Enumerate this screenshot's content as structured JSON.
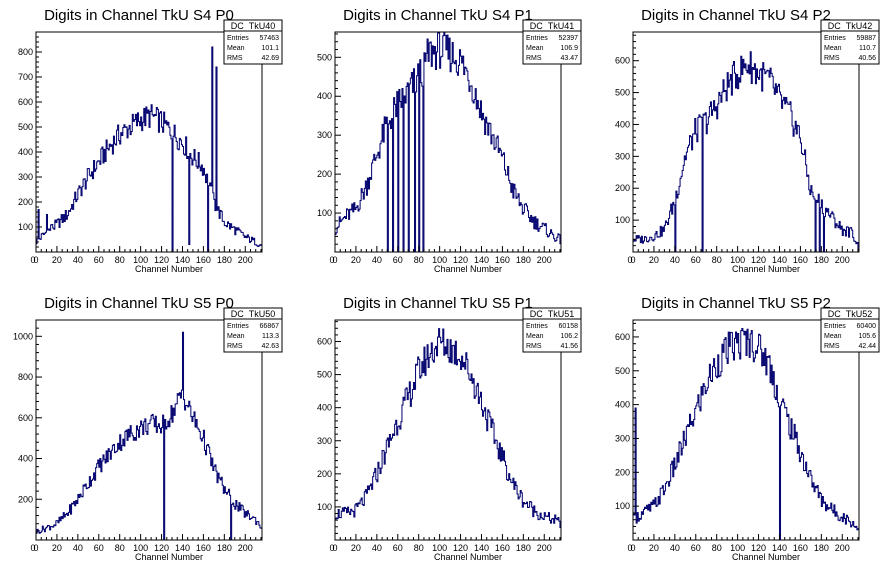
{
  "chart_data": [
    {
      "type": "histogram",
      "title": "Digits in Channel TkU S4 P0",
      "xlabel": "Channel Number",
      "xlim": [
        0,
        216
      ],
      "ylim": [
        0,
        880
      ],
      "xticks": [
        0,
        20,
        40,
        60,
        80,
        100,
        120,
        140,
        160,
        180,
        200
      ],
      "yticks": [
        100,
        200,
        300,
        400,
        500,
        600,
        700,
        800
      ],
      "stats": {
        "name": "DC_TkU40",
        "entries_label": "Entries",
        "entries": "57463",
        "mean_label": "Mean",
        "mean": "101.1",
        "rms_label": "RMS",
        "rms": "42.69"
      },
      "profile": [
        [
          0,
          40
        ],
        [
          10,
          80
        ],
        [
          20,
          110
        ],
        [
          30,
          150
        ],
        [
          40,
          230
        ],
        [
          50,
          300
        ],
        [
          60,
          360
        ],
        [
          70,
          420
        ],
        [
          80,
          470
        ],
        [
          90,
          500
        ],
        [
          100,
          530
        ],
        [
          110,
          545
        ],
        [
          120,
          520
        ],
        [
          130,
          480
        ],
        [
          140,
          440
        ],
        [
          150,
          380
        ],
        [
          160,
          340
        ],
        [
          170,
          200
        ],
        [
          180,
          120
        ],
        [
          190,
          90
        ],
        [
          200,
          60
        ],
        [
          210,
          40
        ],
        [
          216,
          25
        ]
      ],
      "spikes": [
        [
          2,
          170
        ],
        [
          10,
          150
        ],
        [
          15,
          110
        ],
        [
          130,
          0
        ],
        [
          146,
          30
        ],
        [
          164,
          0
        ],
        [
          168,
          820
        ],
        [
          172,
          740
        ]
      ]
    },
    {
      "type": "histogram",
      "title": "Digits in Channel TkU S4 P1",
      "xlabel": "Channel Number",
      "xlim": [
        0,
        216
      ],
      "ylim": [
        0,
        565
      ],
      "xticks": [
        0,
        20,
        40,
        60,
        80,
        100,
        120,
        140,
        160,
        180,
        200
      ],
      "yticks": [
        100,
        200,
        300,
        400,
        500
      ],
      "stats": {
        "name": "DC_TkU41",
        "entries_label": "Entries",
        "entries": "52397",
        "mean_label": "Mean",
        "mean": "106.9",
        "rms_label": "RMS",
        "rms": "43.47"
      },
      "profile": [
        [
          0,
          60
        ],
        [
          10,
          90
        ],
        [
          20,
          110
        ],
        [
          30,
          170
        ],
        [
          40,
          250
        ],
        [
          50,
          330
        ],
        [
          60,
          380
        ],
        [
          70,
          410
        ],
        [
          80,
          450
        ],
        [
          90,
          510
        ],
        [
          100,
          520
        ],
        [
          110,
          510
        ],
        [
          120,
          490
        ],
        [
          130,
          440
        ],
        [
          140,
          360
        ],
        [
          150,
          300
        ],
        [
          160,
          240
        ],
        [
          170,
          160
        ],
        [
          180,
          110
        ],
        [
          190,
          80
        ],
        [
          200,
          60
        ],
        [
          210,
          40
        ],
        [
          216,
          30
        ]
      ],
      "spikes": [
        [
          50,
          0
        ],
        [
          55,
          0
        ],
        [
          60,
          0
        ],
        [
          65,
          0
        ],
        [
          70,
          0
        ],
        [
          76,
          0
        ],
        [
          80,
          0
        ],
        [
          84,
          0
        ]
      ]
    },
    {
      "type": "histogram",
      "title": "Digits in Channel TkU S4 P2",
      "xlabel": "Channel Number",
      "xlim": [
        0,
        216
      ],
      "ylim": [
        0,
        690
      ],
      "xticks": [
        0,
        20,
        40,
        60,
        80,
        100,
        120,
        140,
        160,
        180,
        200
      ],
      "yticks": [
        100,
        200,
        300,
        400,
        500,
        600
      ],
      "stats": {
        "name": "DC_TkU42",
        "entries_label": "Entries",
        "entries": "59887",
        "mean_label": "Mean",
        "mean": "110.7",
        "rms_label": "RMS",
        "rms": "40.56"
      },
      "profile": [
        [
          0,
          40
        ],
        [
          10,
          40
        ],
        [
          20,
          50
        ],
        [
          30,
          70
        ],
        [
          40,
          160
        ],
        [
          50,
          300
        ],
        [
          60,
          380
        ],
        [
          70,
          410
        ],
        [
          80,
          460
        ],
        [
          90,
          520
        ],
        [
          100,
          560
        ],
        [
          110,
          590
        ],
        [
          120,
          560
        ],
        [
          130,
          540
        ],
        [
          140,
          480
        ],
        [
          150,
          430
        ],
        [
          160,
          360
        ],
        [
          170,
          190
        ],
        [
          180,
          150
        ],
        [
          190,
          110
        ],
        [
          200,
          70
        ],
        [
          210,
          60
        ],
        [
          216,
          10
        ]
      ],
      "spikes": [
        [
          40,
          0
        ],
        [
          66,
          0
        ],
        [
          174,
          0
        ],
        [
          178,
          0
        ],
        [
          182,
          0
        ]
      ]
    },
    {
      "type": "histogram",
      "title": "Digits in Channel TkU S5 P0",
      "xlabel": "Channel Number",
      "xlim": [
        0,
        216
      ],
      "ylim": [
        0,
        1080
      ],
      "xticks": [
        0,
        20,
        40,
        60,
        80,
        100,
        120,
        140,
        160,
        180,
        200
      ],
      "yticks": [
        200,
        400,
        600,
        800,
        1000
      ],
      "stats": {
        "name": "DC_TkU50",
        "entries_label": "Entries",
        "entries": "66867",
        "mean_label": "Mean",
        "mean": "113.3",
        "rms_label": "RMS",
        "rms": "42.63"
      },
      "profile": [
        [
          0,
          40
        ],
        [
          10,
          60
        ],
        [
          20,
          80
        ],
        [
          30,
          130
        ],
        [
          40,
          200
        ],
        [
          50,
          280
        ],
        [
          60,
          360
        ],
        [
          70,
          420
        ],
        [
          80,
          480
        ],
        [
          90,
          520
        ],
        [
          100,
          550
        ],
        [
          110,
          570
        ],
        [
          120,
          560
        ],
        [
          130,
          620
        ],
        [
          140,
          720
        ],
        [
          150,
          600
        ],
        [
          160,
          500
        ],
        [
          170,
          350
        ],
        [
          180,
          250
        ],
        [
          190,
          180
        ],
        [
          200,
          130
        ],
        [
          210,
          100
        ],
        [
          216,
          60
        ]
      ],
      "spikes": [
        [
          122,
          0
        ],
        [
          140,
          1020
        ],
        [
          186,
          0
        ]
      ]
    },
    {
      "type": "histogram",
      "title": "Digits in Channel TkU S5 P1",
      "xlabel": "Channel Number",
      "xlim": [
        0,
        216
      ],
      "ylim": [
        0,
        665
      ],
      "xticks": [
        0,
        20,
        40,
        60,
        80,
        100,
        120,
        140,
        160,
        180,
        200
      ],
      "yticks": [
        100,
        200,
        300,
        400,
        500,
        600
      ],
      "stats": {
        "name": "DC_TkU51",
        "entries_label": "Entries",
        "entries": "60158",
        "mean_label": "Mean",
        "mean": "106.2",
        "rms_label": "RMS",
        "rms": "41.56"
      },
      "profile": [
        [
          0,
          80
        ],
        [
          10,
          80
        ],
        [
          20,
          90
        ],
        [
          30,
          130
        ],
        [
          40,
          200
        ],
        [
          50,
          280
        ],
        [
          60,
          360
        ],
        [
          70,
          430
        ],
        [
          80,
          510
        ],
        [
          90,
          560
        ],
        [
          100,
          600
        ],
        [
          110,
          580
        ],
        [
          120,
          560
        ],
        [
          130,
          500
        ],
        [
          140,
          420
        ],
        [
          150,
          330
        ],
        [
          160,
          250
        ],
        [
          170,
          170
        ],
        [
          180,
          120
        ],
        [
          190,
          90
        ],
        [
          200,
          70
        ],
        [
          210,
          60
        ],
        [
          216,
          50
        ]
      ],
      "spikes": []
    },
    {
      "type": "histogram",
      "title": "Digits in Channel TkU S5 P2",
      "xlabel": "Channel Number",
      "xlim": [
        0,
        216
      ],
      "ylim": [
        0,
        650
      ],
      "xticks": [
        0,
        20,
        40,
        60,
        80,
        100,
        120,
        140,
        160,
        180,
        200
      ],
      "yticks": [
        100,
        200,
        300,
        400,
        500,
        600
      ],
      "stats": {
        "name": "DC_TkU52",
        "entries_label": "Entries",
        "entries": "60400",
        "mean_label": "Mean",
        "mean": "105.6",
        "rms_label": "RMS",
        "rms": "42.44"
      },
      "profile": [
        [
          0,
          60
        ],
        [
          10,
          80
        ],
        [
          20,
          100
        ],
        [
          30,
          150
        ],
        [
          40,
          220
        ],
        [
          50,
          300
        ],
        [
          60,
          380
        ],
        [
          70,
          460
        ],
        [
          80,
          520
        ],
        [
          90,
          560
        ],
        [
          100,
          580
        ],
        [
          110,
          590
        ],
        [
          120,
          570
        ],
        [
          130,
          520
        ],
        [
          140,
          420
        ],
        [
          150,
          340
        ],
        [
          160,
          260
        ],
        [
          170,
          180
        ],
        [
          180,
          120
        ],
        [
          190,
          90
        ],
        [
          200,
          70
        ],
        [
          210,
          50
        ],
        [
          216,
          30
        ]
      ],
      "spikes": [
        [
          2,
          390
        ],
        [
          140,
          0
        ]
      ]
    }
  ],
  "colors": {
    "line": "#00006e",
    "axis": "#000000",
    "background": "#ffffff"
  }
}
